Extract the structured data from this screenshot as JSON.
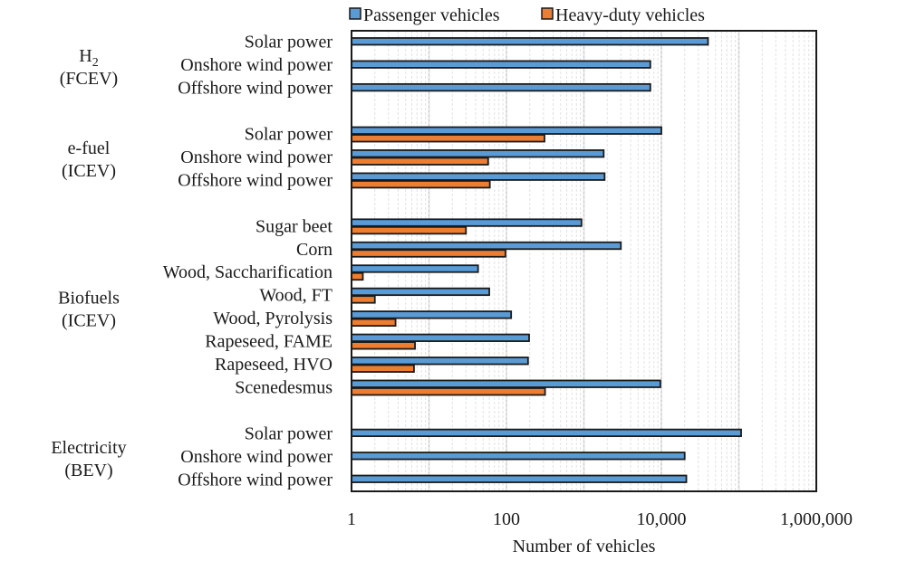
{
  "chart_data": {
    "type": "bar",
    "orientation": "horizontal",
    "xscale": "log",
    "title": "",
    "xlabel": "Number of vehicles",
    "ylabel": "",
    "xlim": [
      1,
      1000000
    ],
    "xticks": [
      1,
      100,
      10000,
      1000000
    ],
    "xtick_labels": [
      "1",
      "100",
      "10,000",
      "1,000,000"
    ],
    "grid": true,
    "legend": {
      "placement": "top-center",
      "entries": [
        "Passenger vehicles",
        "Heavy-duty vehicles"
      ]
    },
    "colors": {
      "Passenger vehicles": "#5B9BD5",
      "Heavy-duty vehicles": "#ED7D31"
    },
    "groups": [
      {
        "label_main": "H",
        "label_sub": "2",
        "label_line2": "(FCEV)",
        "categories": [
          {
            "label": "Solar power",
            "passenger": 40000,
            "heavy": null
          },
          {
            "label": "Onshore wind power",
            "passenger": 7200,
            "heavy": null
          },
          {
            "label": "Offshore wind power",
            "passenger": 7200,
            "heavy": null
          }
        ]
      },
      {
        "label_main": "e-fuel",
        "label_sub": "",
        "label_line2": "(ICEV)",
        "categories": [
          {
            "label": "Solar power",
            "passenger": 10000,
            "heavy": 310
          },
          {
            "label": "Onshore wind power",
            "passenger": 1800,
            "heavy": 58
          },
          {
            "label": "Offshore wind power",
            "passenger": 1850,
            "heavy": 61
          }
        ]
      },
      {
        "label_main": "Biofuels",
        "label_sub": "",
        "label_line2": "(ICEV)",
        "categories": [
          {
            "label": "Sugar beet",
            "passenger": 930,
            "heavy": 30
          },
          {
            "label": "Corn",
            "passenger": 3000,
            "heavy": 97
          },
          {
            "label": "Wood, Saccharification",
            "passenger": 43,
            "heavy": 1.4
          },
          {
            "label": "Wood, FT",
            "passenger": 60,
            "heavy": 2
          },
          {
            "label": "Wood, Pyrolysis",
            "passenger": 115,
            "heavy": 3.7
          },
          {
            "label": "Rapeseed, FAME",
            "passenger": 196,
            "heavy": 6.6
          },
          {
            "label": "Rapeseed, HVO",
            "passenger": 190,
            "heavy": 6.4
          },
          {
            "label": "Scenedesmus",
            "passenger": 9700,
            "heavy": 315
          }
        ]
      },
      {
        "label_main": "Electricity",
        "label_sub": "",
        "label_line2": "(BEV)",
        "categories": [
          {
            "label": "Solar power",
            "passenger": 107000,
            "heavy": null
          },
          {
            "label": "Onshore wind power",
            "passenger": 20000,
            "heavy": null
          },
          {
            "label": "Offshore wind power",
            "passenger": 21000,
            "heavy": null
          }
        ]
      }
    ]
  }
}
